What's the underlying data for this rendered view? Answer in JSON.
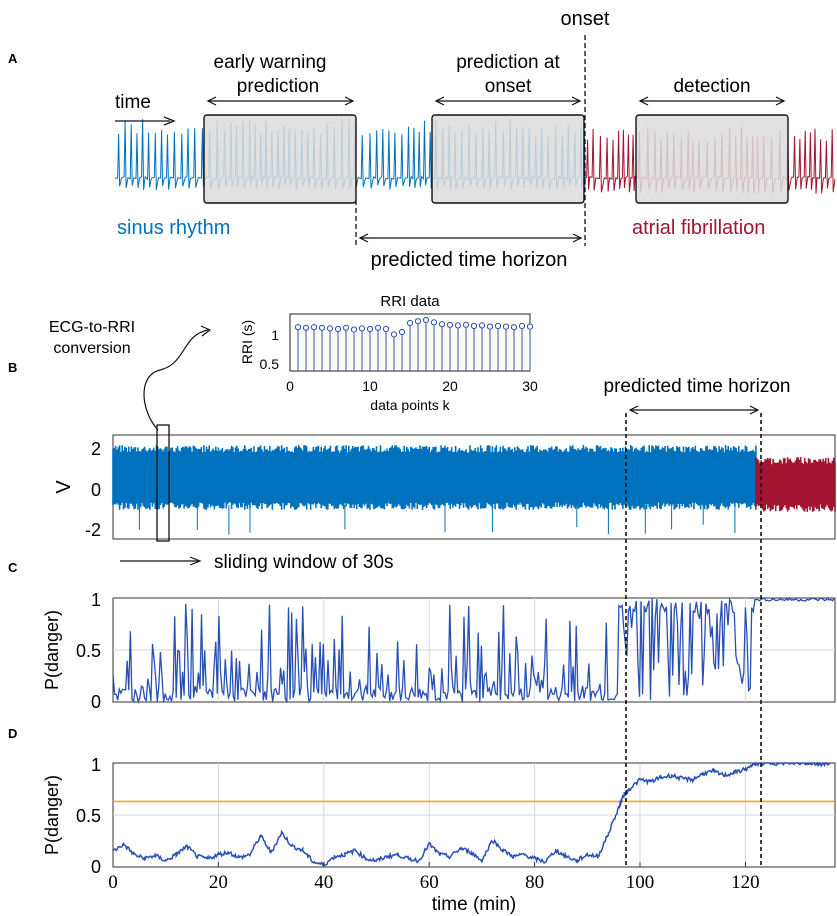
{
  "panels": {
    "A": {
      "label": "A",
      "onset": "onset",
      "time": "time",
      "early_warning_line1": "early warning",
      "early_warning_line2": "prediction",
      "prediction_onset_line1": "prediction at",
      "prediction_onset_line2": "onset",
      "detection": "detection",
      "sinus_rhythm": "sinus rhythm",
      "atrial_fibrillation": "atrial fibrillation",
      "predicted_time_horizon": "predicted time horizon"
    },
    "B": {
      "label": "B",
      "conversion_line1": "ECG-to-RRI",
      "conversion_line2": "conversion",
      "predicted_time_horizon": "predicted time horizon",
      "ylabel": "V",
      "sliding_window": "sliding window of 30s",
      "inset": {
        "title": "RRI data",
        "ylabel": "RRI (s)",
        "xlabel": "data points k"
      }
    },
    "C": {
      "label": "C",
      "ylabel": "P(danger)"
    },
    "D": {
      "label": "D",
      "ylabel": "P(danger)",
      "xlabel": "time (min)"
    }
  },
  "colors": {
    "sinus": "#0072BD",
    "af": "#A2142F",
    "prob_line": "#2850B4",
    "threshold": "#F5A623",
    "box_fill": "#DCDCDC"
  },
  "chart_data": [
    {
      "panel": "B-inset",
      "type": "scatter",
      "title": "RRI data",
      "xlabel": "data points k",
      "ylabel": "RRI (s)",
      "xlim": [
        0,
        30
      ],
      "ylim": [
        0.25,
        1.2
      ],
      "xticks": [
        "0",
        "10",
        "20",
        "30"
      ],
      "yticks": [
        "1",
        "0.5"
      ],
      "x": [
        1,
        2,
        3,
        4,
        5,
        6,
        7,
        8,
        9,
        10,
        11,
        12,
        13,
        14,
        15,
        16,
        17,
        18,
        19,
        20,
        21,
        22,
        23,
        24,
        25,
        26,
        27,
        28,
        29,
        30
      ],
      "values": [
        0.98,
        0.97,
        0.98,
        0.97,
        0.96,
        0.95,
        0.97,
        0.94,
        0.96,
        0.95,
        0.97,
        0.95,
        0.86,
        0.9,
        1.05,
        1.08,
        1.1,
        1.06,
        1.03,
        1.02,
        1.01,
        1.02,
        1.0,
        1.01,
        0.99,
        1.0,
        0.99,
        0.98,
        1.0,
        0.99
      ]
    },
    {
      "panel": "B",
      "type": "line",
      "ylabel": "V",
      "ylim": [
        -2.3,
        2.6
      ],
      "yticks": [
        "2",
        "0",
        "-2"
      ],
      "x_range_min": [
        0,
        137
      ],
      "af_onset_min": 122,
      "horizon_start_min": 97
    },
    {
      "panel": "C",
      "type": "line",
      "ylabel": "P(danger)",
      "xlim": [
        0,
        137
      ],
      "ylim": [
        0,
        1
      ],
      "yticks": [
        "1",
        "0.5",
        "0"
      ],
      "grid": true
    },
    {
      "panel": "D",
      "type": "line",
      "xlabel": "time (min)",
      "ylabel": "P(danger)",
      "xlim": [
        0,
        137
      ],
      "ylim": [
        0,
        1
      ],
      "xticks": [
        "0",
        "20",
        "40",
        "60",
        "80",
        "100",
        "120"
      ],
      "yticks": [
        "1",
        "0.5",
        "0"
      ],
      "threshold": 0.63,
      "grid": true,
      "series": [
        {
          "x": [
            0,
            2,
            4,
            6,
            8,
            10,
            12,
            14,
            16,
            18,
            20,
            22,
            24,
            26,
            28,
            30,
            32,
            34,
            36,
            38,
            40,
            42,
            44,
            46,
            48,
            50,
            52,
            54,
            56,
            58,
            60,
            62,
            64,
            66,
            68,
            70,
            72,
            74,
            76,
            78,
            80,
            82,
            84,
            86,
            88,
            90,
            92,
            94,
            96,
            97,
            98,
            100,
            102,
            104,
            106,
            108,
            110,
            112,
            114,
            116,
            118,
            120,
            122,
            124,
            126,
            128,
            130,
            132,
            134,
            136
          ],
          "values": [
            0.15,
            0.22,
            0.12,
            0.08,
            0.11,
            0.06,
            0.12,
            0.2,
            0.1,
            0.08,
            0.12,
            0.14,
            0.09,
            0.12,
            0.3,
            0.14,
            0.33,
            0.2,
            0.16,
            0.05,
            0.02,
            0.1,
            0.12,
            0.16,
            0.08,
            0.06,
            0.1,
            0.12,
            0.08,
            0.06,
            0.22,
            0.12,
            0.1,
            0.18,
            0.14,
            0.06,
            0.26,
            0.16,
            0.1,
            0.12,
            0.08,
            0.05,
            0.16,
            0.1,
            0.06,
            0.12,
            0.1,
            0.32,
            0.58,
            0.7,
            0.75,
            0.84,
            0.82,
            0.86,
            0.88,
            0.85,
            0.84,
            0.9,
            0.92,
            0.88,
            0.91,
            0.94,
            0.99,
            1.0,
            1.0,
            1.0,
            1.0,
            1.0,
            0.99,
            1.0
          ]
        }
      ]
    }
  ]
}
